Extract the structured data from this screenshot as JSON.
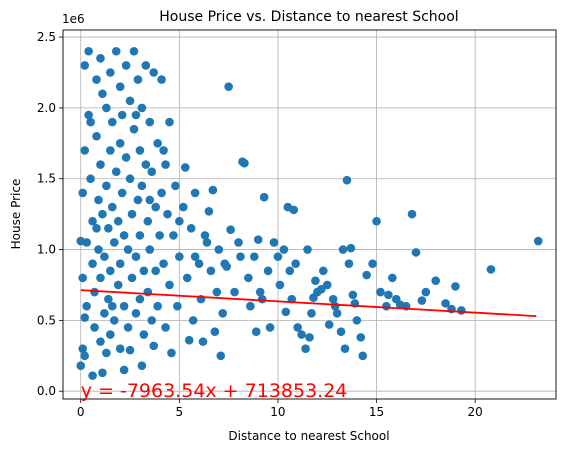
{
  "chart_data": {
    "type": "scatter",
    "title": "House Price vs. Distance to nearest School",
    "xlabel": "Distance to nearest School",
    "ylabel": "House Price",
    "y_offset_label": "1e6",
    "xlim": [
      -0.9,
      24.1
    ],
    "ylim": [
      -55000,
      2550000
    ],
    "x_ticks": [
      0,
      5,
      10,
      15,
      20
    ],
    "x_tick_labels": [
      "0",
      "5",
      "10",
      "15",
      "20"
    ],
    "y_ticks": [
      0,
      500000,
      1000000,
      1500000,
      2000000,
      2500000
    ],
    "y_tick_labels": [
      "0.0",
      "0.5",
      "1.0",
      "1.5",
      "2.0",
      "2.5"
    ],
    "grid": true,
    "point_color": "#1f77b4",
    "regression": {
      "slope": -7963.54,
      "intercept": 713853.24,
      "x_range": [
        0.0,
        23.1
      ],
      "color": "#ff0000",
      "equation_label": "y = -7963.54x + 713853.24"
    },
    "points": [
      [
        0.1,
        1400000
      ],
      [
        0.2,
        2300000
      ],
      [
        0.2,
        1700000
      ],
      [
        0.3,
        1050000
      ],
      [
        0.3,
        600000
      ],
      [
        0.1,
        300000
      ],
      [
        0.2,
        250000
      ],
      [
        0.4,
        2400000
      ],
      [
        0.5,
        1900000
      ],
      [
        0.5,
        1500000
      ],
      [
        0.6,
        1200000
      ],
      [
        0.6,
        900000
      ],
      [
        0.7,
        700000
      ],
      [
        0.7,
        450000
      ],
      [
        0.8,
        2200000
      ],
      [
        0.8,
        1800000
      ],
      [
        0.9,
        1350000
      ],
      [
        0.9,
        1000000
      ],
      [
        1.0,
        2350000
      ],
      [
        1.0,
        1600000
      ],
      [
        1.0,
        800000
      ],
      [
        1.0,
        350000
      ],
      [
        1.1,
        2100000
      ],
      [
        1.1,
        1250000
      ],
      [
        1.2,
        950000
      ],
      [
        1.2,
        550000
      ],
      [
        1.3,
        2000000
      ],
      [
        1.3,
        1450000
      ],
      [
        1.4,
        1150000
      ],
      [
        1.4,
        650000
      ],
      [
        1.5,
        2250000
      ],
      [
        1.5,
        1700000
      ],
      [
        1.5,
        850000
      ],
      [
        1.5,
        400000
      ],
      [
        1.6,
        1900000
      ],
      [
        1.6,
        1300000
      ],
      [
        1.7,
        1050000
      ],
      [
        1.7,
        500000
      ],
      [
        1.8,
        2400000
      ],
      [
        1.8,
        1550000
      ],
      [
        1.9,
        1200000
      ],
      [
        1.9,
        750000
      ],
      [
        2.0,
        2150000
      ],
      [
        2.0,
        1750000
      ],
      [
        2.0,
        900000
      ],
      [
        2.0,
        300000
      ],
      [
        2.1,
        1950000
      ],
      [
        2.1,
        1400000
      ],
      [
        2.2,
        1100000
      ],
      [
        2.2,
        600000
      ],
      [
        2.3,
        2300000
      ],
      [
        2.3,
        1650000
      ],
      [
        2.4,
        1000000
      ],
      [
        2.4,
        450000
      ],
      [
        2.5,
        2050000
      ],
      [
        2.5,
        1500000
      ],
      [
        2.6,
        1250000
      ],
      [
        2.6,
        800000
      ],
      [
        2.7,
        2400000
      ],
      [
        2.7,
        1850000
      ],
      [
        2.8,
        950000
      ],
      [
        2.8,
        550000
      ],
      [
        2.9,
        2200000
      ],
      [
        2.9,
        1350000
      ],
      [
        3.0,
        1700000
      ],
      [
        3.0,
        1100000
      ],
      [
        3.0,
        650000
      ],
      [
        3.1,
        2000000
      ],
      [
        3.1,
        1450000
      ],
      [
        3.2,
        850000
      ],
      [
        3.2,
        400000
      ],
      [
        3.3,
        2300000
      ],
      [
        3.3,
        1600000
      ],
      [
        3.4,
        1200000
      ],
      [
        3.4,
        700000
      ],
      [
        3.5,
        1900000
      ],
      [
        3.5,
        1000000
      ],
      [
        3.6,
        1550000
      ],
      [
        3.6,
        500000
      ],
      [
        3.7,
        2250000
      ],
      [
        3.8,
        1300000
      ],
      [
        3.8,
        850000
      ],
      [
        3.9,
        1750000
      ],
      [
        3.9,
        600000
      ],
      [
        4.0,
        1100000
      ],
      [
        4.1,
        2200000
      ],
      [
        4.1,
        1400000
      ],
      [
        4.2,
        900000
      ],
      [
        4.3,
        1600000
      ],
      [
        4.3,
        450000
      ],
      [
        4.4,
        1250000
      ],
      [
        4.5,
        1900000
      ],
      [
        4.5,
        750000
      ],
      [
        4.7,
        1100000
      ],
      [
        4.8,
        1450000
      ],
      [
        4.9,
        600000
      ],
      [
        5.0,
        950000
      ],
      [
        5.2,
        1300000
      ],
      [
        5.3,
        1580000
      ],
      [
        5.4,
        800000
      ],
      [
        5.6,
        1150000
      ],
      [
        5.7,
        500000
      ],
      [
        5.8,
        1400000
      ],
      [
        6.0,
        900000
      ],
      [
        6.1,
        650000
      ],
      [
        6.3,
        1100000
      ],
      [
        6.5,
        1270000
      ],
      [
        6.6,
        850000
      ],
      [
        6.7,
        1420000
      ],
      [
        6.9,
        700000
      ],
      [
        7.0,
        1000000
      ],
      [
        7.2,
        550000
      ],
      [
        7.3,
        900000
      ],
      [
        7.5,
        2150000
      ],
      [
        7.6,
        1140000
      ],
      [
        7.8,
        700000
      ],
      [
        8.0,
        1050000
      ],
      [
        8.2,
        1620000
      ],
      [
        8.3,
        1610000
      ],
      [
        8.5,
        800000
      ],
      [
        8.6,
        600000
      ],
      [
        8.8,
        950000
      ],
      [
        9.0,
        1070000
      ],
      [
        9.1,
        700000
      ],
      [
        9.3,
        1370000
      ],
      [
        9.5,
        850000
      ],
      [
        9.6,
        450000
      ],
      [
        9.8,
        1050000
      ],
      [
        10.0,
        950000
      ],
      [
        10.1,
        750000
      ],
      [
        10.3,
        1000000
      ],
      [
        10.5,
        1300000
      ],
      [
        10.6,
        850000
      ],
      [
        10.8,
        1280000
      ],
      [
        10.9,
        900000
      ],
      [
        11.0,
        450000
      ],
      [
        11.2,
        400000
      ],
      [
        11.4,
        300000
      ],
      [
        11.5,
        1000000
      ],
      [
        11.6,
        380000
      ],
      [
        11.8,
        660000
      ],
      [
        12.0,
        700000
      ],
      [
        12.3,
        850000
      ],
      [
        12.5,
        750000
      ],
      [
        12.6,
        470000
      ],
      [
        12.8,
        650000
      ],
      [
        13.0,
        550000
      ],
      [
        13.2,
        420000
      ],
      [
        13.4,
        300000
      ],
      [
        13.5,
        1490000
      ],
      [
        13.6,
        900000
      ],
      [
        13.7,
        1010000
      ],
      [
        13.8,
        680000
      ],
      [
        14.0,
        500000
      ],
      [
        14.2,
        380000
      ],
      [
        14.5,
        820000
      ],
      [
        15.0,
        1200000
      ],
      [
        15.2,
        700000
      ],
      [
        15.5,
        600000
      ],
      [
        15.8,
        800000
      ],
      [
        16.0,
        650000
      ],
      [
        16.5,
        600000
      ],
      [
        16.8,
        1250000
      ],
      [
        17.0,
        980000
      ],
      [
        17.5,
        700000
      ],
      [
        18.0,
        780000
      ],
      [
        18.5,
        620000
      ],
      [
        19.0,
        740000
      ],
      [
        19.3,
        570000
      ],
      [
        20.8,
        860000
      ],
      [
        23.2,
        1060000
      ],
      [
        0.6,
        110000
      ],
      [
        1.1,
        130000
      ],
      [
        2.2,
        150000
      ],
      [
        3.1,
        180000
      ],
      [
        4.6,
        270000
      ],
      [
        6.2,
        350000
      ],
      [
        7.1,
        250000
      ],
      [
        8.9,
        420000
      ],
      [
        10.4,
        560000
      ],
      [
        12.9,
        600000
      ],
      [
        13.9,
        620000
      ],
      [
        14.8,
        900000
      ],
      [
        0.0,
        1060000
      ],
      [
        0.0,
        180000
      ],
      [
        0.1,
        800000
      ],
      [
        0.2,
        520000
      ],
      [
        1.3,
        270000
      ],
      [
        2.5,
        290000
      ],
      [
        3.7,
        320000
      ],
      [
        5.5,
        360000
      ],
      [
        6.8,
        420000
      ],
      [
        9.2,
        650000
      ],
      [
        11.7,
        550000
      ],
      [
        13.3,
        1000000
      ],
      [
        14.3,
        250000
      ],
      [
        0.4,
        1950000
      ],
      [
        0.8,
        1150000
      ],
      [
        1.6,
        600000
      ],
      [
        2.8,
        1950000
      ],
      [
        3.5,
        1350000
      ],
      [
        4.2,
        1700000
      ],
      [
        5.0,
        1200000
      ],
      [
        5.8,
        950000
      ],
      [
        6.4,
        1050000
      ],
      [
        7.4,
        880000
      ],
      [
        8.1,
        950000
      ],
      [
        10.7,
        650000
      ],
      [
        11.9,
        780000
      ],
      [
        12.2,
        720000
      ],
      [
        15.6,
        680000
      ],
      [
        16.2,
        610000
      ],
      [
        17.3,
        640000
      ],
      [
        18.8,
        580000
      ]
    ]
  }
}
